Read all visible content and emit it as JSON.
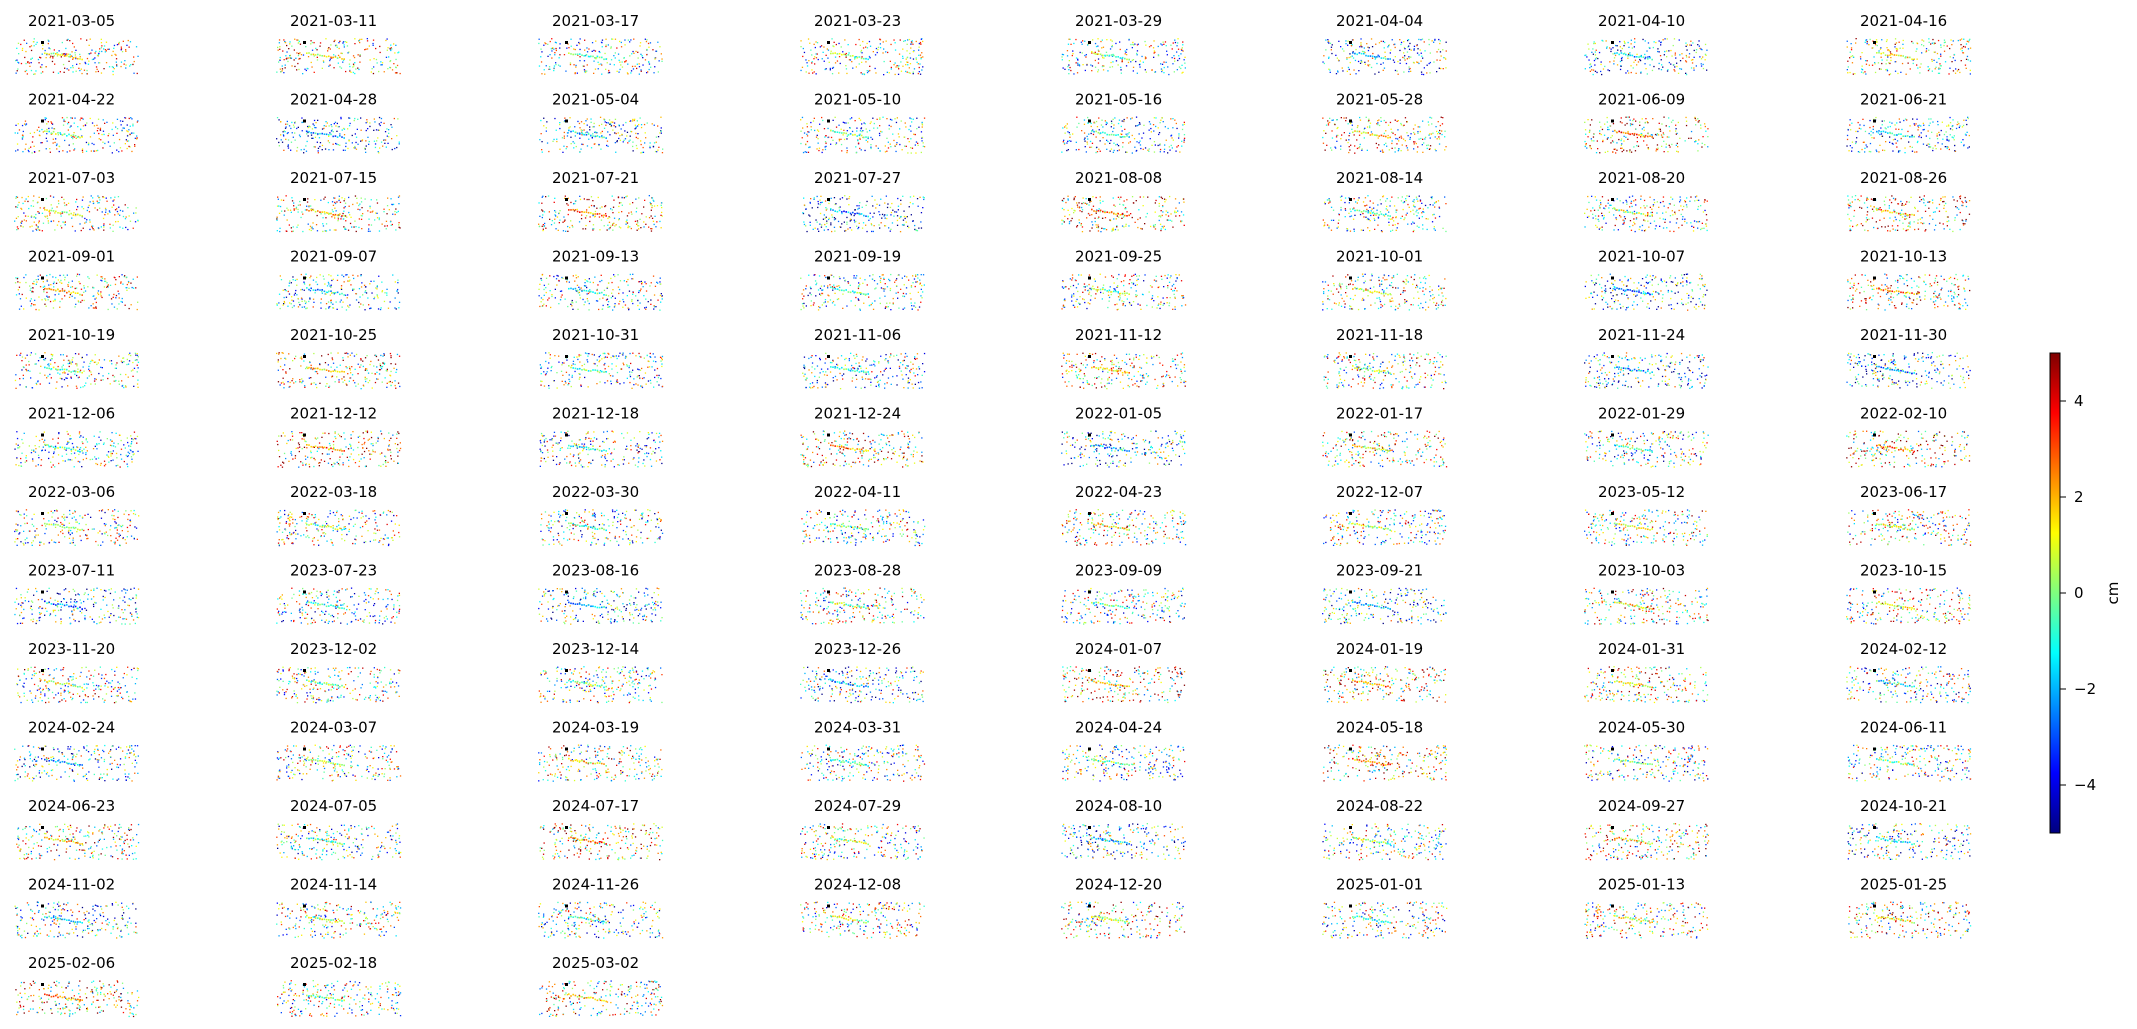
{
  "chart_data": {
    "type": "scatter",
    "title": "",
    "layout": {
      "columns": 8,
      "panels": 99
    },
    "panel_titles": [
      "2021-03-05",
      "2021-03-11",
      "2021-03-17",
      "2021-03-23",
      "2021-03-29",
      "2021-04-04",
      "2021-04-10",
      "2021-04-16",
      "2021-04-22",
      "2021-04-28",
      "2021-05-04",
      "2021-05-10",
      "2021-05-16",
      "2021-05-28",
      "2021-06-09",
      "2021-06-21",
      "2021-07-03",
      "2021-07-15",
      "2021-07-21",
      "2021-07-27",
      "2021-08-08",
      "2021-08-14",
      "2021-08-20",
      "2021-08-26",
      "2021-09-01",
      "2021-09-07",
      "2021-09-13",
      "2021-09-19",
      "2021-09-25",
      "2021-10-01",
      "2021-10-07",
      "2021-10-13",
      "2021-10-19",
      "2021-10-25",
      "2021-10-31",
      "2021-11-06",
      "2021-11-12",
      "2021-11-18",
      "2021-11-24",
      "2021-11-30",
      "2021-12-06",
      "2021-12-12",
      "2021-12-18",
      "2021-12-24",
      "2022-01-05",
      "2022-01-17",
      "2022-01-29",
      "2022-02-10",
      "2022-03-06",
      "2022-03-18",
      "2022-03-30",
      "2022-04-11",
      "2022-04-23",
      "2022-12-07",
      "2023-05-12",
      "2023-06-17",
      "2023-07-11",
      "2023-07-23",
      "2023-08-16",
      "2023-08-28",
      "2023-09-09",
      "2023-09-21",
      "2023-10-03",
      "2023-10-15",
      "2023-11-20",
      "2023-12-02",
      "2023-12-14",
      "2023-12-26",
      "2024-01-07",
      "2024-01-19",
      "2024-01-31",
      "2024-02-12",
      "2024-02-24",
      "2024-03-07",
      "2024-03-19",
      "2024-03-31",
      "2024-04-24",
      "2024-05-18",
      "2024-05-30",
      "2024-06-11",
      "2024-06-23",
      "2024-07-05",
      "2024-07-17",
      "2024-07-29",
      "2024-08-10",
      "2024-08-22",
      "2024-09-27",
      "2024-10-21",
      "2024-11-02",
      "2024-11-14",
      "2024-11-26",
      "2024-12-08",
      "2024-12-20",
      "2025-01-01",
      "2025-01-13",
      "2025-01-25",
      "2025-02-06",
      "2025-02-18",
      "2025-03-02"
    ],
    "colorbar": {
      "label": "cm",
      "colormap": "jet",
      "range": [
        -5,
        5
      ],
      "ticks": [
        4,
        2,
        0,
        -2,
        -4
      ],
      "tick_labels": [
        "4",
        "2",
        "0",
        "−2",
        "−4"
      ]
    },
    "axes_visible": false,
    "grid": false
  }
}
